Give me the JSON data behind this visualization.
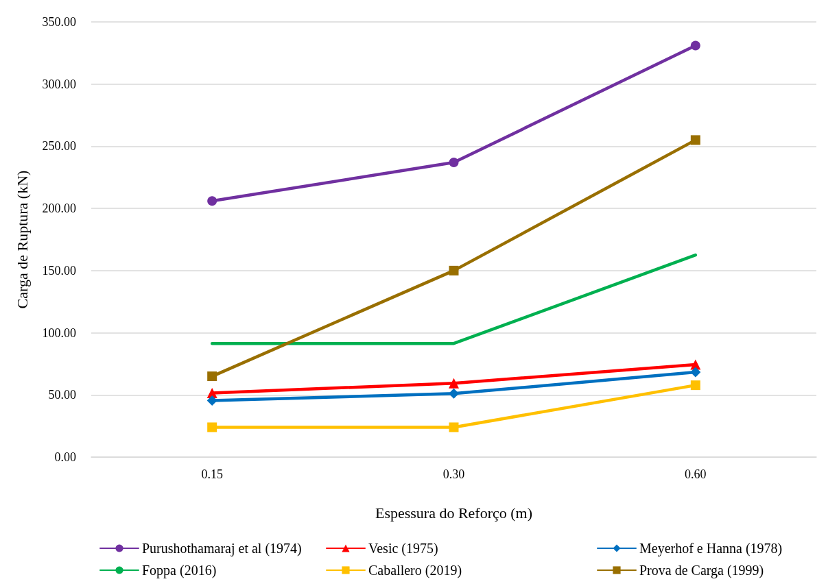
{
  "chart_data": {
    "type": "line",
    "xlabel": "Espessura do Reforço (m)",
    "ylabel": "Carga de Ruptura (kN)",
    "categories": [
      "0.15",
      "0.30",
      "0.60"
    ],
    "ylim": [
      0,
      350
    ],
    "yticks": [
      {
        "value": 0,
        "label": "0.00"
      },
      {
        "value": 50,
        "label": "50.00"
      },
      {
        "value": 100,
        "label": "100.00"
      },
      {
        "value": 150,
        "label": "150.00"
      },
      {
        "value": 200,
        "label": "200.00"
      },
      {
        "value": 250,
        "label": "250.00"
      },
      {
        "value": 300,
        "label": "300.00"
      },
      {
        "value": 350,
        "label": "350.00"
      }
    ],
    "grid": "y",
    "legend": "bottom",
    "line_style": "solid",
    "series": [
      {
        "name": "Purushothamaraj et al (1974)",
        "color": "#7030a0",
        "marker": "circle",
        "values": [
          206,
          237,
          331
        ]
      },
      {
        "name": "Vesic (1975)",
        "color": "#ff0000",
        "marker": "triangle",
        "values": [
          51.6,
          59.4,
          74.4
        ]
      },
      {
        "name": "Meyerhof e Hanna (1978)",
        "color": "#0070c0",
        "marker": "diamond",
        "values": [
          45.5,
          51.1,
          68.3
        ]
      },
      {
        "name": "Foppa (2016)",
        "color": "#00b050",
        "marker": "none",
        "values": [
          91.4,
          91.4,
          162.5
        ]
      },
      {
        "name": "Caballero (2019)",
        "color": "#ffc000",
        "marker": "square",
        "values": [
          24,
          24,
          57.8
        ]
      },
      {
        "name": "Prova de Carga (1999)",
        "color": "#996f00",
        "marker": "square",
        "values": [
          65,
          150,
          255
        ]
      }
    ]
  }
}
